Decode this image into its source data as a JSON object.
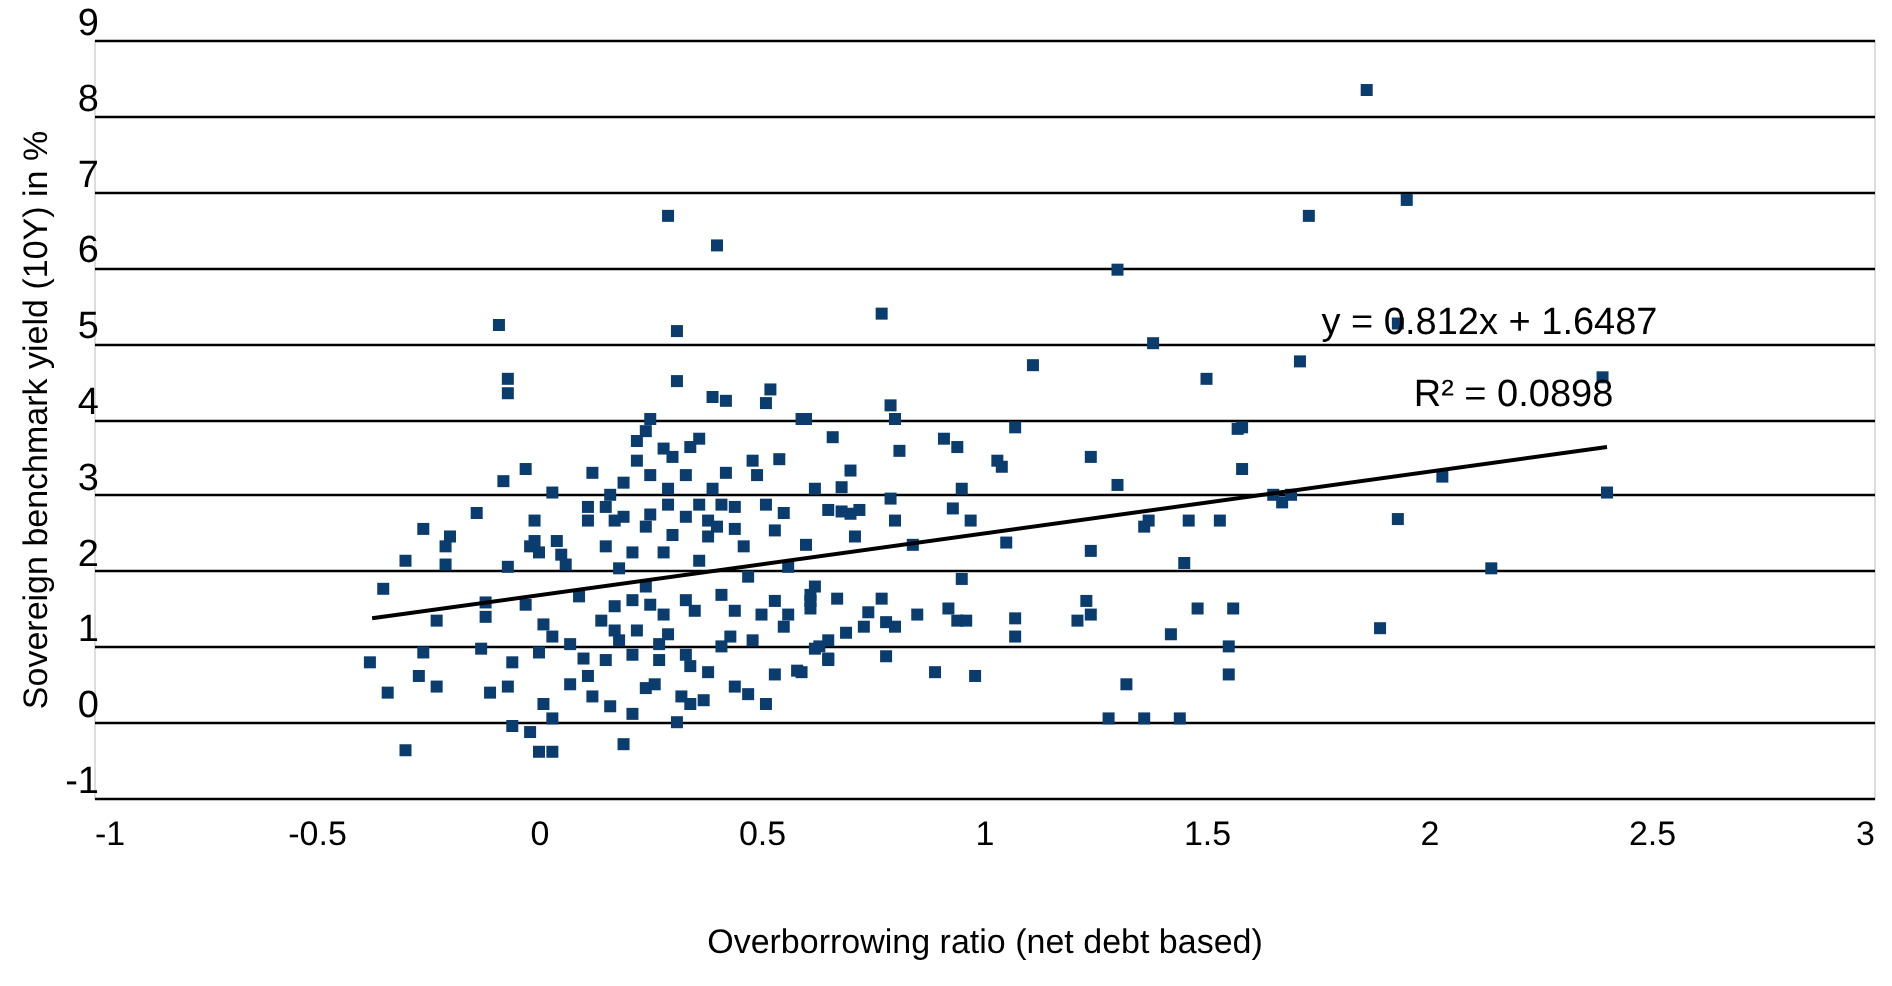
{
  "chart_data": {
    "type": "scatter",
    "xlabel": "Overborrowing ratio (net debt based)",
    "ylabel": "Sovereign benchmark yield (10Y) in %",
    "xlim": [
      -1,
      3
    ],
    "xticks": [
      -1,
      -0.5,
      0,
      0.5,
      1,
      1.5,
      2,
      2.5,
      3
    ],
    "ylim": [
      -1,
      9
    ],
    "yticks": [
      -1,
      0,
      1,
      2,
      3,
      4,
      5,
      6,
      7,
      8,
      9
    ],
    "grid": "y",
    "legend": false,
    "marker": "square",
    "annotations": [
      "y = 0.812x + 1.6487",
      "R² = 0.0898"
    ],
    "series": [
      {
        "type": "scatter",
        "color": "#0b3c6e",
        "x": [
          1.86,
          1.73,
          1.95,
          1.93,
          1.71,
          2.39,
          1.58,
          1.58,
          1.65,
          1.67,
          1.69,
          2.03,
          2.4,
          1.93,
          2.14,
          1.89,
          1.3,
          0.77,
          1.38,
          1.11,
          1.5,
          0.79,
          0.8,
          0.6,
          1.07,
          1.57,
          0.66,
          0.91,
          0.94,
          0.81,
          1.03,
          1.04,
          1.24,
          0.7,
          1.3,
          0.95,
          0.62,
          0.68,
          0.79,
          0.93,
          0.8,
          0.97,
          1.46,
          1.53,
          1.37,
          1.36,
          0.71,
          0.6,
          0.84,
          1.05,
          1.24,
          1.45,
          0.95,
          0.65,
          0.68,
          0.72,
          0.7,
          0.62,
          0.67,
          0.77,
          0.61,
          0.61,
          0.74,
          0.85,
          0.92,
          0.94,
          0.96,
          1.07,
          1.23,
          1.24,
          1.21,
          1.48,
          1.56,
          0.78,
          0.8,
          0.73,
          0.69,
          0.65,
          0.62,
          0.65,
          0.78,
          1.07,
          1.42,
          1.55,
          1.55,
          0.89,
          0.98,
          1.32,
          1.28,
          1.36,
          1.44,
          0.59,
          0.29,
          0.4,
          -0.09,
          0.31,
          -0.07,
          -0.07,
          0.31,
          0.39,
          0.42,
          0.52,
          0.51,
          0.59,
          0.25,
          0.24,
          0.22,
          0.36,
          0.34,
          0.28,
          0.3,
          0.22,
          0.48,
          0.54,
          -0.03,
          0.12,
          0.19,
          0.25,
          0.33,
          0.42,
          0.49,
          -0.08,
          0.03,
          0.16,
          0.29,
          0.39,
          -0.14,
          0.11,
          0.15,
          0.19,
          0.25,
          0.29,
          0.36,
          0.41,
          0.44,
          0.51,
          0.55,
          -0.01,
          0.11,
          0.17,
          0.24,
          0.33,
          0.38,
          0.4,
          0.44,
          0.53,
          -0.26,
          -0.2,
          -0.21,
          -0.01,
          0.3,
          0.38,
          0.46,
          -0.02,
          0.04,
          -0.3,
          -0.21,
          -0.07,
          0.0,
          0.05,
          0.06,
          0.15,
          0.18,
          0.21,
          0.28,
          0.36,
          0.47,
          0.56,
          -0.35,
          -0.12,
          -0.03,
          0.09,
          -0.23,
          -0.12,
          0.01,
          0.14,
          0.17,
          0.21,
          0.24,
          0.25,
          0.28,
          0.33,
          0.35,
          0.41,
          0.44,
          0.5,
          0.56,
          0.61,
          0.53,
          -0.38,
          -0.34,
          -0.3,
          -0.26,
          -0.27,
          -0.23,
          -0.13,
          -0.11,
          -0.07,
          -0.06,
          -0.06,
          -0.02,
          0.0,
          0.03,
          0.03,
          0.01,
          0.0,
          0.03,
          0.07,
          0.1,
          0.11,
          0.07,
          0.12,
          0.16,
          0.21,
          0.19,
          0.31,
          0.24,
          0.26,
          0.32,
          0.34,
          0.37,
          0.38,
          0.44,
          0.47,
          0.51,
          0.53,
          0.58,
          0.15,
          0.18,
          0.21,
          0.27,
          0.29,
          0.33,
          0.34,
          0.41,
          0.43,
          0.48,
          0.55,
          0.63,
          0.65,
          0.27,
          0.22,
          0.17
        ],
        "values": [
          8.34,
          6.68,
          6.89,
          5.26,
          4.76,
          4.55,
          3.89,
          3.34,
          3.0,
          2.9,
          3.0,
          3.24,
          3.03,
          2.68,
          2.03,
          1.24,
          5.97,
          5.39,
          5.0,
          4.71,
          4.53,
          4.18,
          4.0,
          4.0,
          3.89,
          3.87,
          3.76,
          3.74,
          3.63,
          3.58,
          3.45,
          3.37,
          3.5,
          3.32,
          3.13,
          3.08,
          3.08,
          3.1,
          2.95,
          2.82,
          2.66,
          2.66,
          2.66,
          2.66,
          2.66,
          2.58,
          2.45,
          2.34,
          2.34,
          2.37,
          2.26,
          2.1,
          1.89,
          2.8,
          2.78,
          2.8,
          2.75,
          1.79,
          1.63,
          1.63,
          1.6,
          1.5,
          1.45,
          1.42,
          1.5,
          1.34,
          1.34,
          1.37,
          1.6,
          1.42,
          1.34,
          1.5,
          1.5,
          1.32,
          1.26,
          1.26,
          1.18,
          1.08,
          0.97,
          0.84,
          0.87,
          1.13,
          1.16,
          1.0,
          0.63,
          0.66,
          0.61,
          0.5,
          0.05,
          0.05,
          0.05,
          0.66,
          6.68,
          6.29,
          5.24,
          5.16,
          4.53,
          4.34,
          4.5,
          4.29,
          4.24,
          4.39,
          4.21,
          4.0,
          4.0,
          3.84,
          3.71,
          3.74,
          3.63,
          3.61,
          3.5,
          3.45,
          3.45,
          3.47,
          3.34,
          3.29,
          3.16,
          3.26,
          3.26,
          3.29,
          3.26,
          3.18,
          3.03,
          3.0,
          3.08,
          3.08,
          2.76,
          2.84,
          2.84,
          2.71,
          2.74,
          2.87,
          2.87,
          2.87,
          2.84,
          2.87,
          2.76,
          2.66,
          2.66,
          2.66,
          2.58,
          2.71,
          2.66,
          2.58,
          2.55,
          2.53,
          2.55,
          2.45,
          2.32,
          2.39,
          2.47,
          2.45,
          2.32,
          2.32,
          2.39,
          2.13,
          2.08,
          2.05,
          2.24,
          2.21,
          2.08,
          2.32,
          2.03,
          2.24,
          2.24,
          2.13,
          1.92,
          2.05,
          1.76,
          1.58,
          1.55,
          1.66,
          1.34,
          1.39,
          1.29,
          1.34,
          1.53,
          1.61,
          1.79,
          1.55,
          1.42,
          1.61,
          1.47,
          1.68,
          1.47,
          1.42,
          1.42,
          1.68,
          1.6,
          0.79,
          0.39,
          -0.37,
          0.92,
          0.61,
          0.47,
          0.97,
          0.39,
          0.47,
          0.79,
          -0.05,
          -0.13,
          -0.39,
          -0.39,
          0.05,
          0.24,
          0.92,
          1.13,
          1.03,
          0.84,
          0.61,
          0.5,
          0.34,
          0.21,
          0.11,
          -0.29,
          0.0,
          0.45,
          0.5,
          0.34,
          0.24,
          0.29,
          0.66,
          0.47,
          0.37,
          0.24,
          0.63,
          0.68,
          0.82,
          1.08,
          0.89,
          1.03,
          1.16,
          0.89,
          0.74,
          1.0,
          1.13,
          1.08,
          1.26,
          1.0,
          0.82,
          0.82,
          1.21,
          1.21
        ]
      },
      {
        "type": "line",
        "color": "#000000",
        "marker": "none",
        "line_style": "solid",
        "x": [
          -0.375,
          2.4
        ],
        "values": [
          1.37,
          3.63
        ]
      }
    ]
  }
}
